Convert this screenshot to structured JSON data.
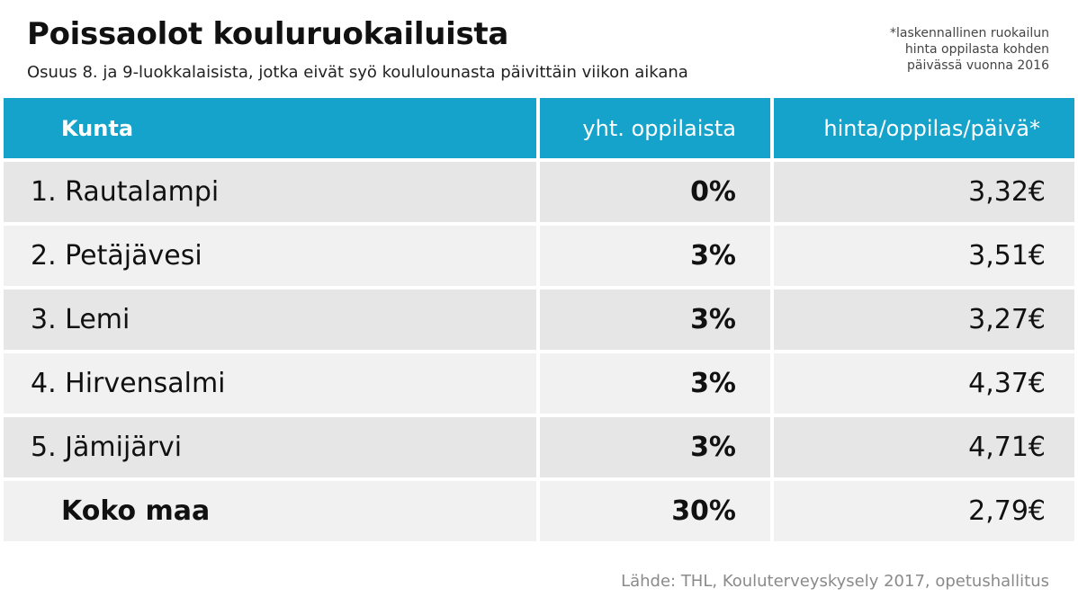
{
  "title": "Poissaolot kouluruokailuista",
  "subtitle": "Osuus 8. ja 9-luokkalaisista, jotka eivät syö koululounasta päivittäin viikon aikana",
  "note_lines": [
    "*laskennallinen ruokailun",
    "hinta oppilasta kohden",
    "päivässä vuonna 2016"
  ],
  "colors": {
    "accent": "#15a3cb"
  },
  "chart_data": {
    "type": "table",
    "columns": [
      "Kunta",
      "yht. oppilaista",
      "hinta/oppilas/päivä*"
    ],
    "rows": [
      [
        "1. Rautalampi",
        "0%",
        "3,32€"
      ],
      [
        "2. Petäjävesi",
        "3%",
        "3,51€"
      ],
      [
        "3. Lemi",
        "3%",
        "3,27€"
      ],
      [
        "4. Hirvensalmi",
        "3%",
        "4,37€"
      ],
      [
        "5. Jämijärvi",
        "3%",
        "4,71€"
      ],
      [
        "Koko maa",
        "30%",
        "2,79€"
      ]
    ]
  },
  "source": "Lähde: THL, Kouluterveyskysely 2017, opetushallitus"
}
